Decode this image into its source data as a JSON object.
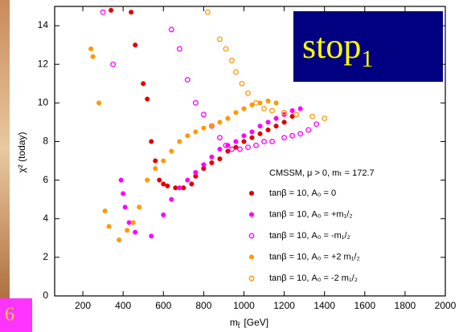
{
  "chart_data": {
    "type": "scatter",
    "annotation": {
      "text": "stop",
      "subscript": "1"
    },
    "page_number": "6",
    "x_label": "m",
    "x_label_subscript": "t̃",
    "x_label_unit": "[GeV]",
    "y_label": "χ² (today)",
    "legend_title": "CMSSM, μ > 0, mₜ = 172.7",
    "xlim": [
      60,
      2000
    ],
    "xticks": [
      200,
      400,
      600,
      800,
      1000,
      1200,
      1400,
      1600,
      1800,
      2000
    ],
    "ylim": [
      0,
      15
    ],
    "yticks": [
      0,
      2,
      4,
      6,
      8,
      10,
      12,
      14
    ],
    "series": [
      {
        "name": "tanβ = 10, A₀ = 0",
        "color": "#e00000",
        "marker": "filled",
        "x": [
          340,
          440,
          460,
          500,
          520,
          540,
          560,
          580,
          600,
          620,
          660,
          700,
          740,
          760,
          800,
          840,
          880,
          920,
          960,
          1000,
          1040,
          1080,
          1120,
          1160,
          1200,
          1240
        ],
        "values": [
          14.8,
          14.7,
          13,
          11,
          10.2,
          8,
          7,
          6,
          5.8,
          5.7,
          5.6,
          5.6,
          5.8,
          6.2,
          6.6,
          6.9,
          7.1,
          7.5,
          7.7,
          8,
          8.2,
          8.4,
          8.6,
          8.8,
          9,
          9.3
        ]
      },
      {
        "name": "tanβ = 10, A₀ = +m₁/₂",
        "color": "#ff00ff",
        "marker": "filled",
        "x": [
          390,
          400,
          410,
          430,
          460,
          540,
          600,
          640,
          680,
          720,
          760,
          800,
          840,
          880,
          920,
          960,
          1000,
          1040,
          1080,
          1120,
          1160,
          1200,
          1240,
          1280
        ],
        "values": [
          6,
          5.3,
          4.6,
          3.8,
          3.3,
          3.1,
          4.2,
          5,
          5.6,
          6,
          6.4,
          6.8,
          7.2,
          7.6,
          7.8,
          8,
          8.3,
          8.5,
          8.8,
          9,
          9.2,
          9.4,
          9.6,
          9.7
        ]
      },
      {
        "name": "tanβ = 10, A₀ = -m₁/₂",
        "color": "#ff00ff",
        "marker": "open",
        "x": [
          300,
          350,
          640,
          680,
          720,
          760,
          800,
          840,
          880,
          910,
          940,
          980,
          1020,
          1060,
          1100,
          1140,
          1200,
          1240,
          1280,
          1320,
          1360
        ],
        "values": [
          14.7,
          12,
          13.8,
          12.8,
          11.2,
          10,
          9.4,
          8.8,
          8.2,
          7.8,
          7.6,
          7.6,
          7.7,
          7.8,
          8,
          8,
          8.2,
          8.3,
          8.4,
          8.6,
          8.9
        ]
      },
      {
        "name": "tanβ = 10, A₀ = +2 m₁/₂",
        "color": "#ff9900",
        "marker": "filled",
        "x": [
          240,
          250,
          280,
          310,
          330,
          380,
          420,
          450,
          480,
          520,
          560,
          600,
          640,
          680,
          720,
          760,
          800,
          840,
          880,
          920,
          960,
          1000,
          1040,
          1080,
          1120,
          1160
        ],
        "values": [
          12.8,
          12.4,
          10,
          4.4,
          3.6,
          2.9,
          3.4,
          3.8,
          4.6,
          6,
          6.6,
          7,
          7.5,
          8,
          8.3,
          8.5,
          8.7,
          8.8,
          9,
          9.2,
          9.5,
          9.7,
          9.9,
          10,
          10.1,
          10
        ]
      },
      {
        "name": "tanβ = 10, A₀ = -2 m₁/₂",
        "color": "#ff9900",
        "marker": "open",
        "x": [
          820,
          880,
          910,
          940,
          960,
          990,
          1020,
          1060,
          1100,
          1140,
          1200,
          1260,
          1340,
          1400
        ],
        "values": [
          14.7,
          13.3,
          12.8,
          12.2,
          11.6,
          11,
          10.5,
          10,
          9.7,
          9.6,
          9.5,
          9.4,
          9.3,
          9.2
        ]
      }
    ]
  }
}
